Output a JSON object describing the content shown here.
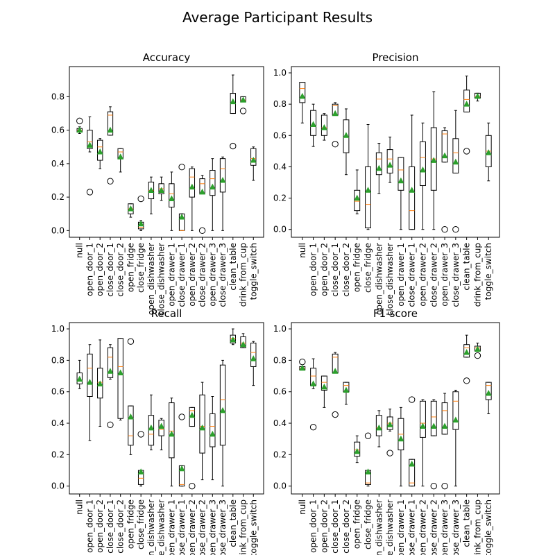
{
  "figure": {
    "title": "Average Participant Results"
  },
  "chart_data": [
    {
      "type": "box",
      "title": "Accuracy",
      "categories": [
        "null",
        "open_door_1",
        "open_door_2",
        "close_door_1",
        "close_door_2",
        "open_fridge",
        "close_fridge",
        "open_dishwasher",
        "close_dishwasher",
        "open_drawer_1",
        "close_drawer_1",
        "open_drawer_2",
        "close_drawer_2",
        "open_drawer_3",
        "close_drawer_3",
        "clean_table",
        "drink_from_cup",
        "toggle_switch"
      ],
      "ylim": [
        -0.04,
        0.98
      ],
      "yticks": [
        0.0,
        0.2,
        0.4,
        0.6,
        0.8
      ],
      "boxes": [
        {
          "whislo": 0.58,
          "q1": 0.59,
          "med": 0.6,
          "q3": 0.61,
          "whishi": 0.62,
          "mean": 0.6,
          "fliers": [
            0.655
          ]
        },
        {
          "whislo": 0.47,
          "q1": 0.49,
          "med": 0.53,
          "q3": 0.6,
          "whishi": 0.68,
          "mean": 0.51,
          "fliers": [
            0.23
          ]
        },
        {
          "whislo": 0.37,
          "q1": 0.42,
          "med": 0.5,
          "q3": 0.54,
          "whishi": 0.55,
          "mean": 0.47,
          "fliers": []
        },
        {
          "whislo": 0.57,
          "q1": 0.57,
          "med": 0.69,
          "q3": 0.71,
          "whishi": 0.74,
          "mean": 0.6,
          "fliers": [
            0.295
          ]
        },
        {
          "whislo": 0.35,
          "q1": 0.43,
          "med": 0.47,
          "q3": 0.49,
          "whishi": 0.49,
          "mean": 0.44,
          "fliers": []
        },
        {
          "whislo": 0.08,
          "q1": 0.1,
          "med": 0.13,
          "q3": 0.16,
          "whishi": 0.16,
          "mean": 0.13,
          "fliers": []
        },
        {
          "whislo": 0.0,
          "q1": 0.01,
          "med": 0.02,
          "q3": 0.05,
          "whishi": 0.06,
          "mean": 0.04,
          "fliers": [
            0.19
          ]
        },
        {
          "whislo": 0.1,
          "q1": 0.19,
          "med": 0.24,
          "q3": 0.29,
          "whishi": 0.32,
          "mean": 0.24,
          "fliers": []
        },
        {
          "whislo": 0.18,
          "q1": 0.22,
          "med": 0.25,
          "q3": 0.28,
          "whishi": 0.32,
          "mean": 0.24,
          "fliers": []
        },
        {
          "whislo": 0.0,
          "q1": 0.14,
          "med": 0.22,
          "q3": 0.28,
          "whishi": 0.35,
          "mean": 0.19,
          "fliers": []
        },
        {
          "whislo": 0.0,
          "q1": 0.0,
          "med": 0.0,
          "q3": 0.1,
          "whishi": 0.1,
          "mean": 0.08,
          "fliers": [
            0.38
          ]
        },
        {
          "whislo": 0.0,
          "q1": 0.2,
          "med": 0.32,
          "q3": 0.37,
          "whishi": 0.38,
          "mean": 0.26,
          "fliers": []
        },
        {
          "whislo": 0.22,
          "q1": 0.22,
          "med": 0.28,
          "q3": 0.31,
          "whishi": 0.33,
          "mean": 0.23,
          "fliers": [
            0.0
          ]
        },
        {
          "whislo": 0.0,
          "q1": 0.21,
          "med": 0.31,
          "q3": 0.36,
          "whishi": 0.43,
          "mean": 0.26,
          "fliers": []
        },
        {
          "whislo": 0.0,
          "q1": 0.23,
          "med": 0.37,
          "q3": 0.43,
          "whishi": 0.44,
          "mean": 0.3,
          "fliers": []
        },
        {
          "whislo": 0.7,
          "q1": 0.7,
          "med": 0.76,
          "q3": 0.82,
          "whishi": 0.93,
          "mean": 0.77,
          "fliers": [
            0.505
          ]
        },
        {
          "whislo": 0.77,
          "q1": 0.77,
          "med": 0.78,
          "q3": 0.8,
          "whishi": 0.8,
          "mean": 0.78,
          "fliers": [
            0.715
          ]
        },
        {
          "whislo": 0.3,
          "q1": 0.39,
          "med": 0.43,
          "q3": 0.49,
          "whishi": 0.5,
          "mean": 0.42,
          "fliers": []
        }
      ]
    },
    {
      "type": "box",
      "title": "Precision",
      "categories": [
        "null",
        "open_door_1",
        "open_door_2",
        "close_door_1",
        "close_door_2",
        "open_fridge",
        "close_fridge",
        "open_dishwasher",
        "close_dishwasher",
        "open_drawer_1",
        "close_drawer_1",
        "open_drawer_2",
        "close_drawer_2",
        "open_drawer_3",
        "close_drawer_3",
        "clean_table",
        "drink_from_cup",
        "toggle_switch"
      ],
      "ylim": [
        -0.05,
        1.04
      ],
      "yticks": [
        0.0,
        0.2,
        0.4,
        0.6,
        0.8,
        1.0
      ],
      "boxes": [
        {
          "whislo": 0.68,
          "q1": 0.81,
          "med": 0.9,
          "q3": 0.94,
          "whishi": 0.94,
          "mean": 0.85,
          "fliers": []
        },
        {
          "whislo": 0.53,
          "q1": 0.6,
          "med": 0.66,
          "q3": 0.76,
          "whishi": 0.8,
          "mean": 0.67,
          "fliers": []
        },
        {
          "whislo": 0.57,
          "q1": 0.6,
          "med": 0.65,
          "q3": 0.73,
          "whishi": 0.74,
          "mean": 0.65,
          "fliers": []
        },
        {
          "whislo": 0.73,
          "q1": 0.73,
          "med": 0.79,
          "q3": 0.8,
          "whishi": 0.81,
          "mean": 0.74,
          "fliers": [
            0.545
          ]
        },
        {
          "whislo": 0.35,
          "q1": 0.49,
          "med": 0.59,
          "q3": 0.7,
          "whishi": 0.77,
          "mean": 0.6,
          "fliers": []
        },
        {
          "whislo": 0.1,
          "q1": 0.12,
          "med": 0.18,
          "q3": 0.25,
          "whishi": 0.38,
          "mean": 0.2,
          "fliers": []
        },
        {
          "whislo": 0.0,
          "q1": 0.01,
          "med": 0.16,
          "q3": 0.4,
          "whishi": 0.67,
          "mean": 0.25,
          "fliers": []
        },
        {
          "whislo": 0.23,
          "q1": 0.35,
          "med": 0.45,
          "q3": 0.49,
          "whishi": 0.55,
          "mean": 0.39,
          "fliers": []
        },
        {
          "whislo": 0.3,
          "q1": 0.36,
          "med": 0.45,
          "q3": 0.51,
          "whishi": 0.59,
          "mean": 0.41,
          "fliers": []
        },
        {
          "whislo": 0.0,
          "q1": 0.25,
          "med": 0.38,
          "q3": 0.46,
          "whishi": 0.46,
          "mean": 0.31,
          "fliers": []
        },
        {
          "whislo": 0.0,
          "q1": 0.0,
          "med": 0.12,
          "q3": 0.4,
          "whishi": 0.73,
          "mean": 0.25,
          "fliers": []
        },
        {
          "whislo": 0.0,
          "q1": 0.28,
          "med": 0.46,
          "q3": 0.56,
          "whishi": 0.68,
          "mean": 0.38,
          "fliers": []
        },
        {
          "whislo": 0.0,
          "q1": 0.25,
          "med": 0.45,
          "q3": 0.65,
          "whishi": 0.88,
          "mean": 0.44,
          "fliers": []
        },
        {
          "whislo": 0.43,
          "q1": 0.43,
          "med": 0.61,
          "q3": 0.63,
          "whishi": 0.65,
          "mean": 0.47,
          "fliers": [
            0.0
          ]
        },
        {
          "whislo": 0.36,
          "q1": 0.36,
          "med": 0.49,
          "q3": 0.58,
          "whishi": 0.76,
          "mean": 0.43,
          "fliers": [
            0.0
          ]
        },
        {
          "whislo": 0.75,
          "q1": 0.75,
          "med": 0.83,
          "q3": 0.89,
          "whishi": 0.98,
          "mean": 0.8,
          "fliers": [
            0.5
          ]
        },
        {
          "whislo": 0.82,
          "q1": 0.84,
          "med": 0.85,
          "q3": 0.87,
          "whishi": 0.87,
          "mean": 0.85,
          "fliers": []
        },
        {
          "whislo": 0.31,
          "q1": 0.4,
          "med": 0.5,
          "q3": 0.6,
          "whishi": 0.68,
          "mean": 0.49,
          "fliers": []
        }
      ]
    },
    {
      "type": "box",
      "title": "Recall",
      "categories": [
        "null",
        "open_door_1",
        "open_door_2",
        "close_door_1",
        "close_door_2",
        "open_fridge",
        "close_fridge",
        "open_dishwasher",
        "close_dishwasher",
        "open_drawer_1",
        "close_drawer_1",
        "open_drawer_2",
        "close_drawer_2",
        "open_drawer_3",
        "close_drawer_3",
        "clean_table",
        "drink_from_cup",
        "toggle_switch"
      ],
      "ylim": [
        -0.05,
        1.04
      ],
      "yticks": [
        0.0,
        0.2,
        0.4,
        0.6,
        0.8,
        1.0
      ],
      "boxes": [
        {
          "whislo": 0.62,
          "q1": 0.65,
          "med": 0.67,
          "q3": 0.72,
          "whishi": 0.8,
          "mean": 0.68,
          "fliers": []
        },
        {
          "whislo": 0.29,
          "q1": 0.57,
          "med": 0.75,
          "q3": 0.84,
          "whishi": 0.9,
          "mean": 0.66,
          "fliers": []
        },
        {
          "whislo": 0.38,
          "q1": 0.56,
          "med": 0.66,
          "q3": 0.75,
          "whishi": 0.93,
          "mean": 0.65,
          "fliers": []
        },
        {
          "whislo": 0.68,
          "q1": 0.69,
          "med": 0.82,
          "q3": 0.88,
          "whishi": 0.9,
          "mean": 0.73,
          "fliers": [
            0.39
          ]
        },
        {
          "whislo": 0.42,
          "q1": 0.43,
          "med": 0.76,
          "q3": 0.94,
          "whishi": 0.94,
          "mean": 0.72,
          "fliers": []
        },
        {
          "whislo": 0.2,
          "q1": 0.26,
          "med": 0.32,
          "q3": 0.51,
          "whishi": 0.51,
          "mean": 0.44,
          "fliers": [
            0.92
          ]
        },
        {
          "whislo": 0.0,
          "q1": 0.01,
          "med": 0.05,
          "q3": 0.1,
          "whishi": 0.1,
          "mean": 0.09,
          "fliers": [
            0.33
          ]
        },
        {
          "whislo": 0.23,
          "q1": 0.26,
          "med": 0.33,
          "q3": 0.45,
          "whishi": 0.58,
          "mean": 0.37,
          "fliers": []
        },
        {
          "whislo": 0.23,
          "q1": 0.32,
          "med": 0.36,
          "q3": 0.42,
          "whishi": 0.43,
          "mean": 0.38,
          "fliers": []
        },
        {
          "whislo": 0.0,
          "q1": 0.18,
          "med": 0.35,
          "q3": 0.53,
          "whishi": 0.56,
          "mean": 0.33,
          "fliers": []
        },
        {
          "whislo": 0.0,
          "q1": 0.0,
          "med": 0.01,
          "q3": 0.13,
          "whishi": 0.13,
          "mean": 0.11,
          "fliers": [
            0.44
          ]
        },
        {
          "whislo": 0.38,
          "q1": 0.38,
          "med": 0.48,
          "q3": 0.5,
          "whishi": 0.5,
          "mean": 0.45,
          "fliers": [
            0.0
          ]
        },
        {
          "whislo": 0.04,
          "q1": 0.21,
          "med": 0.38,
          "q3": 0.58,
          "whishi": 0.66,
          "mean": 0.37,
          "fliers": []
        },
        {
          "whislo": 0.04,
          "q1": 0.25,
          "med": 0.38,
          "q3": 0.46,
          "whishi": 0.57,
          "mean": 0.33,
          "fliers": []
        },
        {
          "whislo": 0.0,
          "q1": 0.26,
          "med": 0.55,
          "q3": 0.77,
          "whishi": 0.8,
          "mean": 0.48,
          "fliers": []
        },
        {
          "whislo": 0.9,
          "q1": 0.91,
          "med": 0.94,
          "q3": 0.96,
          "whishi": 1.0,
          "mean": 0.93,
          "fliers": []
        },
        {
          "whislo": 0.88,
          "q1": 0.88,
          "med": 0.91,
          "q3": 0.95,
          "whishi": 0.97,
          "mean": 0.9,
          "fliers": []
        },
        {
          "whislo": 0.64,
          "q1": 0.76,
          "med": 0.85,
          "q3": 0.91,
          "whishi": 0.92,
          "mean": 0.81,
          "fliers": []
        }
      ]
    },
    {
      "type": "box",
      "title": "F1-score",
      "categories": [
        "null",
        "open_door_1",
        "open_door_2",
        "close_door_1",
        "close_door_2",
        "open_fridge",
        "close_fridge",
        "open_dishwasher",
        "close_dishwasher",
        "open_drawer_1",
        "close_drawer_1",
        "open_drawer_2",
        "close_drawer_2",
        "open_drawer_3",
        "close_drawer_3",
        "clean_table",
        "drink_from_cup",
        "toggle_switch"
      ],
      "ylim": [
        -0.05,
        1.04
      ],
      "yticks": [
        0.0,
        0.2,
        0.4,
        0.6,
        0.8,
        1.0
      ],
      "boxes": [
        {
          "whislo": 0.74,
          "q1": 0.74,
          "med": 0.75,
          "q3": 0.76,
          "whishi": 0.76,
          "mean": 0.75,
          "fliers": [
            0.79
          ]
        },
        {
          "whislo": 0.62,
          "q1": 0.64,
          "med": 0.7,
          "q3": 0.75,
          "whishi": 0.81,
          "mean": 0.65,
          "fliers": [
            0.375
          ]
        },
        {
          "whislo": 0.5,
          "q1": 0.61,
          "med": 0.66,
          "q3": 0.7,
          "whishi": 0.7,
          "mean": 0.63,
          "fliers": []
        },
        {
          "whislo": 0.72,
          "q1": 0.72,
          "med": 0.82,
          "q3": 0.84,
          "whishi": 0.85,
          "mean": 0.73,
          "fliers": [
            0.455
          ]
        },
        {
          "whislo": 0.52,
          "q1": 0.6,
          "med": 0.64,
          "q3": 0.66,
          "whishi": 0.66,
          "mean": 0.61,
          "fliers": []
        },
        {
          "whislo": 0.15,
          "q1": 0.19,
          "med": 0.23,
          "q3": 0.28,
          "whishi": 0.32,
          "mean": 0.22,
          "fliers": []
        },
        {
          "whislo": 0.0,
          "q1": 0.01,
          "med": 0.02,
          "q3": 0.1,
          "whishi": 0.1,
          "mean": 0.09,
          "fliers": [
            0.32
          ]
        },
        {
          "whislo": 0.25,
          "q1": 0.32,
          "med": 0.37,
          "q3": 0.45,
          "whishi": 0.48,
          "mean": 0.37,
          "fliers": []
        },
        {
          "whislo": 0.35,
          "q1": 0.36,
          "med": 0.4,
          "q3": 0.44,
          "whishi": 0.49,
          "mean": 0.39,
          "fliers": [
            0.21
          ]
        },
        {
          "whislo": 0.0,
          "q1": 0.23,
          "med": 0.33,
          "q3": 0.43,
          "whishi": 0.5,
          "mean": 0.3,
          "fliers": []
        },
        {
          "whislo": 0.0,
          "q1": 0.0,
          "med": 0.02,
          "q3": 0.17,
          "whishi": 0.17,
          "mean": 0.14,
          "fliers": [
            0.55
          ]
        },
        {
          "whislo": 0.0,
          "q1": 0.31,
          "med": 0.4,
          "q3": 0.54,
          "whishi": 0.55,
          "mean": 0.38,
          "fliers": []
        },
        {
          "whislo": 0.32,
          "q1": 0.32,
          "med": 0.44,
          "q3": 0.54,
          "whishi": 0.55,
          "mean": 0.38,
          "fliers": [
            0.0
          ]
        },
        {
          "whislo": 0.33,
          "q1": 0.33,
          "med": 0.48,
          "q3": 0.53,
          "whishi": 0.59,
          "mean": 0.38,
          "fliers": [
            0.0
          ]
        },
        {
          "whislo": 0.0,
          "q1": 0.36,
          "med": 0.54,
          "q3": 0.6,
          "whishi": 0.61,
          "mean": 0.42,
          "fliers": []
        },
        {
          "whislo": 0.82,
          "q1": 0.82,
          "med": 0.88,
          "q3": 0.9,
          "whishi": 0.96,
          "mean": 0.85,
          "fliers": [
            0.67
          ]
        },
        {
          "whislo": 0.86,
          "q1": 0.86,
          "med": 0.88,
          "q3": 0.89,
          "whishi": 0.91,
          "mean": 0.87,
          "fliers": [
            0.83
          ]
        },
        {
          "whislo": 0.46,
          "q1": 0.55,
          "med": 0.64,
          "q3": 0.66,
          "whishi": 0.66,
          "mean": 0.59,
          "fliers": []
        }
      ]
    }
  ]
}
